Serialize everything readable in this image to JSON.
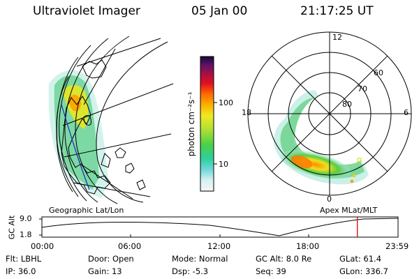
{
  "header": {
    "instrument": "Ultraviolet Imager",
    "date": "05 Jan 00",
    "time": "21:17:25 UT"
  },
  "colorbar": {
    "label": "photon cm⁻²s⁻¹",
    "tick_100": "100",
    "tick_10": "10"
  },
  "polar_plot": {
    "mlt_top": "12",
    "mlt_left": "18",
    "mlt_right": "6",
    "mlt_bottom": "0",
    "lat_60": "60",
    "lat_70": "70",
    "lat_80": "80"
  },
  "panel_labels": {
    "geographic": "Geographic Lat/Lon",
    "apex": "Apex  MLat/MLT"
  },
  "altitude_plot": {
    "axis_label": "GC Alt",
    "ymax": "9.0",
    "ymin": "1.8",
    "time_ticks": [
      "00:00",
      "06:00",
      "12:00",
      "18:00",
      "23:59"
    ],
    "current_time_fraction": 0.8857
  },
  "status": {
    "filter": "Flt: LBHL",
    "door": "Door: Open",
    "mode": "Mode: Normal",
    "gc_alt": "GC Alt: 8.0 Re",
    "glat": "GLat:  61.4",
    "ip": "IP: 36.0",
    "gain": "Gain: 13",
    "dsp": "Dsp:   -5.3",
    "seq": "Seq: 39",
    "glon": "GLon: 336.7"
  },
  "colors": {
    "cursor": "#dd0000"
  }
}
